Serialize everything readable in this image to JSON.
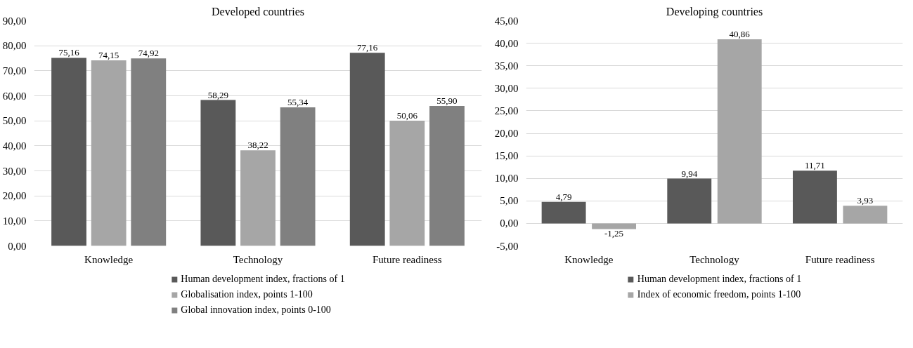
{
  "chart_data": [
    {
      "type": "bar",
      "title": "Developed countries",
      "categories": [
        "Knowledge",
        "Technology",
        "Future readiness"
      ],
      "series": [
        {
          "name": "Human development index, fractions of 1",
          "color": "#595959",
          "values": [
            75.16,
            58.29,
            77.16
          ],
          "value_labels": [
            "75,16",
            "58,29",
            "77,16"
          ]
        },
        {
          "name": "Globalisation index, points 1-100",
          "color": "#a6a6a6",
          "values": [
            74.15,
            38.22,
            50.06
          ],
          "value_labels": [
            "74,15",
            "38,22",
            "50,06"
          ]
        },
        {
          "name": "Global innovation index, points 0-100",
          "color": "#808080",
          "values": [
            74.92,
            55.34,
            55.9
          ],
          "value_labels": [
            "74,92",
            "55,34",
            "55,90"
          ]
        }
      ],
      "ylim": [
        0,
        90
      ],
      "yticks": [
        {
          "value": 0,
          "label": "0,00"
        },
        {
          "value": 10,
          "label": "10,00"
        },
        {
          "value": 20,
          "label": "20,00"
        },
        {
          "value": 30,
          "label": "30,00"
        },
        {
          "value": 40,
          "label": "40,00"
        },
        {
          "value": 50,
          "label": "50,00"
        },
        {
          "value": 60,
          "label": "60,00"
        },
        {
          "value": 70,
          "label": "70,00"
        },
        {
          "value": 80,
          "label": "80,00"
        },
        {
          "value": 90,
          "label": "90,00"
        }
      ],
      "grid": "y",
      "legend": "bottom"
    },
    {
      "type": "bar",
      "title": "Developing countries",
      "categories": [
        "Knowledge",
        "Technology",
        "Future readiness"
      ],
      "series": [
        {
          "name": "Human development index, fractions of 1",
          "color": "#595959",
          "values": [
            4.79,
            9.94,
            11.71
          ],
          "value_labels": [
            "4,79",
            "9,94",
            "11,71"
          ]
        },
        {
          "name": "Index of economic freedom, points 1-100",
          "color": "#a6a6a6",
          "values": [
            -1.25,
            40.86,
            3.93
          ],
          "value_labels": [
            "-1,25",
            "40,86",
            "3,93"
          ]
        }
      ],
      "ylim": [
        -5,
        45
      ],
      "yticks": [
        {
          "value": -5,
          "label": "-5,00"
        },
        {
          "value": 0,
          "label": "0,00"
        },
        {
          "value": 5,
          "label": "5,00"
        },
        {
          "value": 10,
          "label": "10,00"
        },
        {
          "value": 15,
          "label": "15,00"
        },
        {
          "value": 20,
          "label": "20,00"
        },
        {
          "value": 25,
          "label": "25,00"
        },
        {
          "value": 30,
          "label": "30,00"
        },
        {
          "value": 35,
          "label": "35,00"
        },
        {
          "value": 40,
          "label": "40,00"
        },
        {
          "value": 45,
          "label": "45,00"
        }
      ],
      "grid": "y",
      "legend": "bottom"
    }
  ]
}
